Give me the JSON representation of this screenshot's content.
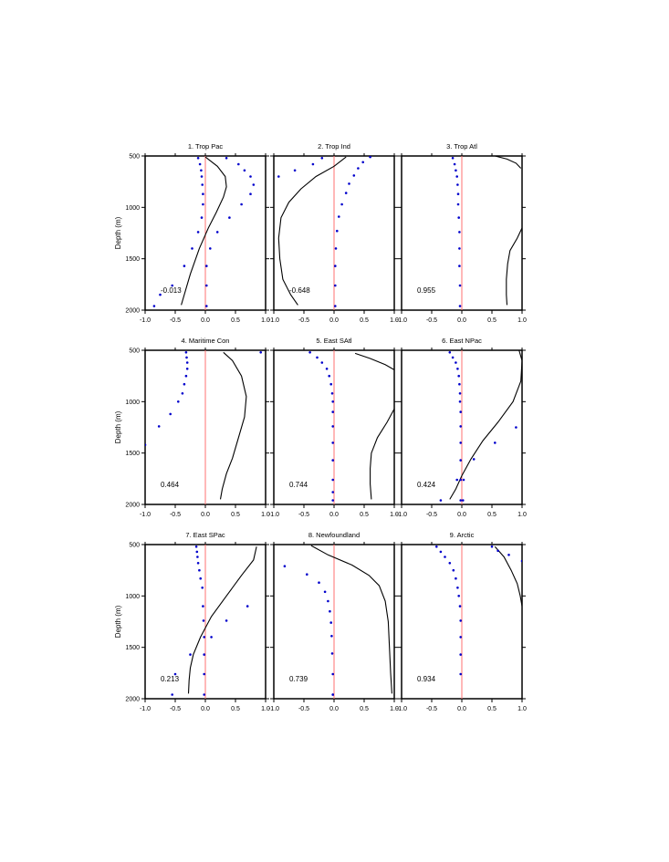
{
  "chart_data": [
    {
      "type": "line",
      "title": "1. Trop Pac",
      "ylabel": "Depth (m)",
      "xlim": [
        -1,
        1
      ],
      "ylim": [
        2000,
        500
      ],
      "x_ticks": [
        "-1.0",
        "-0.5",
        "0.0",
        "0.5",
        "1.0"
      ],
      "y_ticks": [
        "500",
        "1000",
        "1500",
        "2000"
      ],
      "annotation": "-0.013",
      "series": [
        {
          "style": "line",
          "color": "#000000",
          "x": [
            0.0,
            0.2,
            0.33,
            0.35,
            0.3,
            0.18,
            0.05,
            -0.1,
            -0.25,
            -0.4
          ],
          "y": [
            510,
            600,
            700,
            800,
            900,
            1050,
            1200,
            1400,
            1650,
            1950
          ]
        },
        {
          "style": "points",
          "color": "#0000cc",
          "x": [
            -0.12,
            -0.09,
            -0.07,
            -0.06,
            -0.05,
            -0.04,
            -0.04,
            -0.06,
            -0.12,
            -0.22,
            -0.35,
            -0.55,
            -0.75,
            -0.85,
            0.35,
            0.55,
            0.65,
            0.75,
            0.8,
            0.75,
            0.6,
            0.4,
            0.2,
            0.08,
            0.02,
            0.02,
            0.02
          ],
          "y": [
            520,
            580,
            640,
            700,
            780,
            870,
            970,
            1100,
            1240,
            1400,
            1570,
            1760,
            1850,
            1960,
            520,
            580,
            640,
            700,
            780,
            870,
            970,
            1100,
            1240,
            1400,
            1570,
            1760,
            1960
          ]
        },
        {
          "style": "line",
          "color": "#ff7070",
          "x": [
            0,
            0
          ],
          "y": [
            500,
            2000
          ]
        }
      ]
    },
    {
      "type": "line",
      "title": "2. Trop Ind",
      "ylabel": "",
      "xlim": [
        -1,
        1
      ],
      "ylim": [
        2000,
        500
      ],
      "x_ticks": [
        "-1.0",
        "-0.5",
        "0.0",
        "0.5",
        "1.0"
      ],
      "y_ticks": [
        "500",
        "1000",
        "1500",
        "2000"
      ],
      "annotation": "-0.648",
      "series": [
        {
          "style": "line",
          "color": "#000000",
          "x": [
            0.2,
            0.0,
            -0.3,
            -0.55,
            -0.75,
            -0.88,
            -0.92,
            -0.9,
            -0.85,
            -0.72,
            -0.6
          ],
          "y": [
            510,
            600,
            700,
            820,
            950,
            1100,
            1300,
            1500,
            1700,
            1850,
            1950
          ]
        },
        {
          "style": "points",
          "color": "#0000cc",
          "x": [
            0.6,
            0.48,
            0.4,
            0.33,
            0.25,
            0.2,
            0.13,
            0.08,
            0.05,
            0.03,
            0.02,
            0.02,
            0.02,
            -0.2,
            -0.35,
            -0.65,
            -0.92
          ],
          "y": [
            510,
            560,
            620,
            690,
            770,
            860,
            970,
            1090,
            1230,
            1400,
            1570,
            1760,
            1960,
            520,
            580,
            640,
            700
          ]
        },
        {
          "style": "line",
          "color": "#ff7070",
          "x": [
            0,
            0
          ],
          "y": [
            500,
            2000
          ]
        }
      ]
    },
    {
      "type": "line",
      "title": "3. Trop Atl",
      "ylabel": "",
      "xlim": [
        -1,
        1
      ],
      "ylim": [
        2000,
        500
      ],
      "x_ticks": [
        "-1.0",
        "-0.5",
        "0.0",
        "0.5",
        "1.0"
      ],
      "y_ticks": [
        "500",
        "1000",
        "1500",
        "2000"
      ],
      "annotation": "0.955",
      "series": [
        {
          "style": "line",
          "color": "#000000",
          "x": [
            0.55,
            0.75,
            0.9,
            0.98
          ],
          "y": [
            500,
            530,
            570,
            620
          ]
        },
        {
          "style": "line",
          "color": "#000000",
          "x": [
            1.0,
            0.92,
            0.8,
            0.76,
            0.74,
            0.74,
            0.75
          ],
          "y": [
            1200,
            1300,
            1420,
            1550,
            1700,
            1850,
            1950
          ]
        },
        {
          "style": "points",
          "color": "#0000cc",
          "x": [
            -0.15,
            -0.12,
            -0.1,
            -0.08,
            -0.07,
            -0.06,
            -0.06,
            -0.05,
            -0.04,
            -0.04,
            -0.04,
            -0.03,
            -0.03
          ],
          "y": [
            520,
            580,
            640,
            700,
            780,
            870,
            970,
            1100,
            1240,
            1400,
            1570,
            1760,
            1960
          ]
        },
        {
          "style": "line",
          "color": "#ff7070",
          "x": [
            0,
            0
          ],
          "y": [
            500,
            2000
          ]
        }
      ]
    },
    {
      "type": "line",
      "title": "4. Maritime Con",
      "ylabel": "Depth (m)",
      "xlim": [
        -1,
        1
      ],
      "ylim": [
        2000,
        500
      ],
      "x_ticks": [
        "-1.0",
        "-0.5",
        "0.0",
        "0.5",
        "1.0"
      ],
      "y_ticks": [
        "500",
        "1000",
        "1500",
        "2000"
      ],
      "annotation": "0.464",
      "series": [
        {
          "style": "line",
          "color": "#000000",
          "x": [
            0.3,
            0.45,
            0.6,
            0.68,
            0.65,
            0.55,
            0.45,
            0.35,
            0.28,
            0.25
          ],
          "y": [
            520,
            600,
            750,
            950,
            1150,
            1350,
            1550,
            1700,
            1850,
            1950
          ]
        },
        {
          "style": "points",
          "color": "#0000cc",
          "x": [
            -0.32,
            -0.31,
            -0.3,
            -0.3,
            -0.32,
            -0.35,
            -0.38,
            -0.45,
            -0.58,
            -0.77,
            -1.0,
            0.92
          ],
          "y": [
            520,
            570,
            620,
            680,
            750,
            830,
            920,
            1000,
            1120,
            1240,
            1420,
            520
          ]
        },
        {
          "style": "line",
          "color": "#ff7070",
          "x": [
            0,
            0
          ],
          "y": [
            500,
            2000
          ]
        }
      ]
    },
    {
      "type": "line",
      "title": "5. East SAtl",
      "ylabel": "",
      "xlim": [
        -1,
        1
      ],
      "ylim": [
        2000,
        500
      ],
      "x_ticks": [
        "-1.0",
        "-0.5",
        "0.0",
        "0.5",
        "1.0"
      ],
      "y_ticks": [
        "500",
        "1000",
        "1500",
        "2000"
      ],
      "annotation": "0.744",
      "series": [
        {
          "style": "line",
          "color": "#000000",
          "x": [
            0.35,
            0.6,
            0.85,
            1.0
          ],
          "y": [
            530,
            580,
            640,
            690
          ]
        },
        {
          "style": "line",
          "color": "#000000",
          "x": [
            1.0,
            0.88,
            0.72,
            0.62,
            0.6,
            0.6,
            0.62
          ],
          "y": [
            1070,
            1200,
            1350,
            1500,
            1650,
            1800,
            1950
          ]
        },
        {
          "style": "points",
          "color": "#0000cc",
          "x": [
            -0.4,
            -0.28,
            -0.2,
            -0.12,
            -0.08,
            -0.05,
            -0.03,
            -0.02,
            -0.02,
            -0.02,
            -0.02,
            -0.02,
            -0.02,
            -0.02,
            -0.02
          ],
          "y": [
            520,
            570,
            620,
            680,
            750,
            830,
            920,
            1000,
            1100,
            1240,
            1400,
            1570,
            1760,
            1960,
            1880
          ]
        },
        {
          "style": "line",
          "color": "#ff7070",
          "x": [
            0,
            0
          ],
          "y": [
            500,
            2000
          ]
        }
      ]
    },
    {
      "type": "line",
      "title": "6. East NPac",
      "ylabel": "",
      "xlim": [
        -1,
        1
      ],
      "ylim": [
        2000,
        500
      ],
      "x_ticks": [
        "-1.0",
        "-0.5",
        "0.0",
        "0.5",
        "1.0"
      ],
      "y_ticks": [
        "500",
        "1000",
        "1500",
        "2000"
      ],
      "annotation": "0.424",
      "series": [
        {
          "style": "line",
          "color": "#000000",
          "x": [
            0.95,
            1.0,
            0.98,
            0.85,
            0.6,
            0.35,
            0.15,
            0.0,
            -0.1,
            -0.2
          ],
          "y": [
            500,
            600,
            800,
            1000,
            1200,
            1380,
            1560,
            1720,
            1850,
            1950
          ]
        },
        {
          "style": "points",
          "color": "#0000cc",
          "x": [
            -0.2,
            -0.15,
            -0.1,
            -0.07,
            -0.05,
            -0.04,
            -0.03,
            -0.03,
            -0.02,
            -0.02,
            -0.02,
            -0.02,
            -0.02,
            -0.02,
            0.9,
            0.55,
            0.2,
            0.03,
            -0.08,
            -0.35,
            0.02
          ],
          "y": [
            520,
            570,
            620,
            680,
            750,
            830,
            920,
            1000,
            1100,
            1240,
            1400,
            1570,
            1760,
            1960,
            1250,
            1400,
            1560,
            1760,
            1760,
            1960,
            1960
          ]
        },
        {
          "style": "line",
          "color": "#ff7070",
          "x": [
            0,
            0
          ],
          "y": [
            500,
            2000
          ]
        }
      ]
    },
    {
      "type": "line",
      "title": "7. East SPac",
      "ylabel": "Depth (m)",
      "xlim": [
        -1,
        1
      ],
      "ylim": [
        2000,
        500
      ],
      "x_ticks": [
        "-1.0",
        "-0.5",
        "0.0",
        "0.5",
        "1.0"
      ],
      "y_ticks": [
        "500",
        "1000",
        "1500",
        "2000"
      ],
      "annotation": "0.213",
      "series": [
        {
          "style": "line",
          "color": "#000000",
          "x": [
            0.85,
            0.8,
            0.6,
            0.35,
            0.1,
            -0.08,
            -0.2,
            -0.25,
            -0.27,
            -0.28
          ],
          "y": [
            520,
            650,
            800,
            1000,
            1200,
            1400,
            1570,
            1700,
            1820,
            1950
          ]
        },
        {
          "style": "points",
          "color": "#0000cc",
          "x": [
            -0.15,
            -0.14,
            -0.13,
            -0.12,
            -0.1,
            -0.08,
            -0.05,
            -0.04,
            -0.03,
            -0.02,
            -0.02,
            -0.02,
            -0.02,
            0.7,
            0.35,
            0.1,
            -0.25,
            -0.5,
            -0.55
          ],
          "y": [
            520,
            570,
            620,
            680,
            750,
            830,
            920,
            1100,
            1240,
            1400,
            1570,
            1760,
            1960,
            1100,
            1240,
            1400,
            1570,
            1760,
            1960
          ]
        },
        {
          "style": "line",
          "color": "#ff7070",
          "x": [
            0,
            0
          ],
          "y": [
            500,
            2000
          ]
        }
      ]
    },
    {
      "type": "line",
      "title": "8. Newfoundland",
      "ylabel": "",
      "xlim": [
        -1,
        1
      ],
      "ylim": [
        2000,
        500
      ],
      "x_ticks": [
        "-1.0",
        "-0.5",
        "0.0",
        "0.5",
        "1.0"
      ],
      "y_ticks": [
        "500",
        "1000",
        "1500",
        "2000"
      ],
      "annotation": "0.739",
      "series": [
        {
          "style": "line",
          "color": "#000000",
          "x": [
            -0.38,
            -0.1,
            0.3,
            0.58,
            0.75,
            0.85,
            0.9,
            0.92,
            0.94,
            0.96
          ],
          "y": [
            510,
            600,
            700,
            800,
            900,
            1050,
            1250,
            1500,
            1750,
            1950
          ]
        },
        {
          "style": "points",
          "color": "#0000cc",
          "x": [
            -0.82,
            -0.45,
            -0.25,
            -0.15,
            -0.1,
            -0.07,
            -0.05,
            -0.04,
            -0.03,
            -0.02,
            -0.02,
            -0.02
          ],
          "y": [
            710,
            790,
            870,
            960,
            1050,
            1150,
            1260,
            1390,
            1560,
            1760,
            1960,
            1960
          ]
        },
        {
          "style": "line",
          "color": "#ff7070",
          "x": [
            0,
            0
          ],
          "y": [
            500,
            2000
          ]
        }
      ]
    },
    {
      "type": "line",
      "title": "9. Arctic",
      "ylabel": "",
      "xlim": [
        -1,
        1
      ],
      "ylim": [
        2000,
        500
      ],
      "x_ticks": [
        "-1.0",
        "-0.5",
        "0.0",
        "0.5",
        "1.0"
      ],
      "y_ticks": [
        "500",
        "1000",
        "1500",
        "2000"
      ],
      "annotation": "0.934",
      "series": [
        {
          "style": "line",
          "color": "#000000",
          "x": [
            0.55,
            0.7,
            0.82,
            0.92,
            0.97,
            1.0
          ],
          "y": [
            520,
            620,
            750,
            880,
            1000,
            1100
          ]
        },
        {
          "style": "points",
          "color": "#0000cc",
          "x": [
            -0.42,
            -0.35,
            -0.28,
            -0.2,
            -0.14,
            -0.1,
            -0.07,
            -0.05,
            -0.03,
            -0.02,
            -0.02,
            -0.02,
            -0.02,
            0.5,
            0.6,
            0.78,
            1.0
          ],
          "y": [
            520,
            570,
            620,
            680,
            750,
            830,
            920,
            1000,
            1100,
            1240,
            1400,
            1570,
            1760,
            520,
            560,
            600,
            660
          ]
        },
        {
          "style": "line",
          "color": "#ff7070",
          "x": [
            0,
            0
          ],
          "y": [
            500,
            2000
          ]
        }
      ]
    }
  ]
}
